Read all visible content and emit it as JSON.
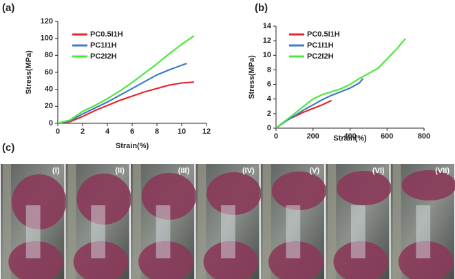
{
  "chart_data": [
    {
      "type": "line",
      "title": "(a)",
      "x_label": "Strain(%)",
      "y_label": "Stress(MPa)",
      "xlim": [
        0,
        12
      ],
      "xticks": [
        0,
        2,
        4,
        6,
        8,
        10,
        12
      ],
      "ylim": [
        0,
        120
      ],
      "yticks": [
        0,
        20,
        40,
        60,
        80,
        100,
        120
      ],
      "legend": "upper left",
      "series": [
        {
          "name": "PC0.5I1H",
          "color": "#e8262b",
          "x": [
            0,
            1,
            2,
            3,
            4,
            5,
            6,
            7,
            8,
            9,
            10,
            11
          ],
          "values": [
            0,
            2,
            8,
            15,
            21,
            27,
            32,
            37,
            41,
            45,
            47.5,
            48.5
          ]
        },
        {
          "name": "PC1I1H",
          "color": "#3f7ac8",
          "x": [
            0,
            1,
            2,
            3,
            4,
            5,
            6,
            7,
            8,
            9,
            10.4
          ],
          "values": [
            0,
            3,
            11,
            18,
            25,
            33,
            41,
            49,
            57,
            63,
            70.5
          ]
        },
        {
          "name": "PC2I2H",
          "color": "#4be83c",
          "x": [
            0,
            1,
            2,
            3,
            4,
            5,
            6,
            7,
            8,
            9,
            10,
            11
          ],
          "values": [
            0,
            4,
            14,
            21,
            29,
            38,
            48,
            59,
            70,
            82,
            93,
            103
          ]
        }
      ]
    },
    {
      "type": "line",
      "title": "(b)",
      "x_label": "Strain(%)",
      "y_label": "Stress(MPa)",
      "xlim": [
        0,
        800
      ],
      "xticks": [
        0,
        200,
        400,
        600,
        800
      ],
      "ylim": [
        0,
        14
      ],
      "yticks": [
        0,
        2,
        4,
        6,
        8,
        10,
        12,
        14
      ],
      "legend": "upper left",
      "series": [
        {
          "name": "PC0.5I1H",
          "color": "#e8262b",
          "x": [
            0,
            50,
            100,
            150,
            200,
            250,
            300
          ],
          "values": [
            0,
            1,
            1.6,
            2.2,
            2.7,
            3.2,
            3.8
          ]
        },
        {
          "name": "PC1I1H",
          "color": "#3f7ac8",
          "x": [
            0,
            50,
            100,
            150,
            200,
            250,
            300,
            350,
            400,
            450,
            470
          ],
          "values": [
            0,
            0.9,
            1.7,
            2.5,
            3.2,
            3.9,
            4.5,
            5.0,
            5.5,
            6.2,
            6.8
          ]
        },
        {
          "name": "PC2I2H",
          "color": "#4be83c",
          "x": [
            0,
            50,
            100,
            150,
            200,
            250,
            300,
            350,
            400,
            450,
            500,
            550,
            600,
            650,
            700
          ],
          "values": [
            0,
            1.0,
            2.0,
            3.0,
            4.0,
            4.6,
            5.0,
            5.4,
            6.0,
            6.8,
            7.5,
            8.2,
            9.5,
            10.8,
            12.3
          ]
        }
      ]
    }
  ],
  "photos": {
    "title": "(c)",
    "labels": [
      "(I)",
      "(II)",
      "(III)",
      "(IV)",
      "(V)",
      "(VI)",
      "(VII)"
    ]
  }
}
